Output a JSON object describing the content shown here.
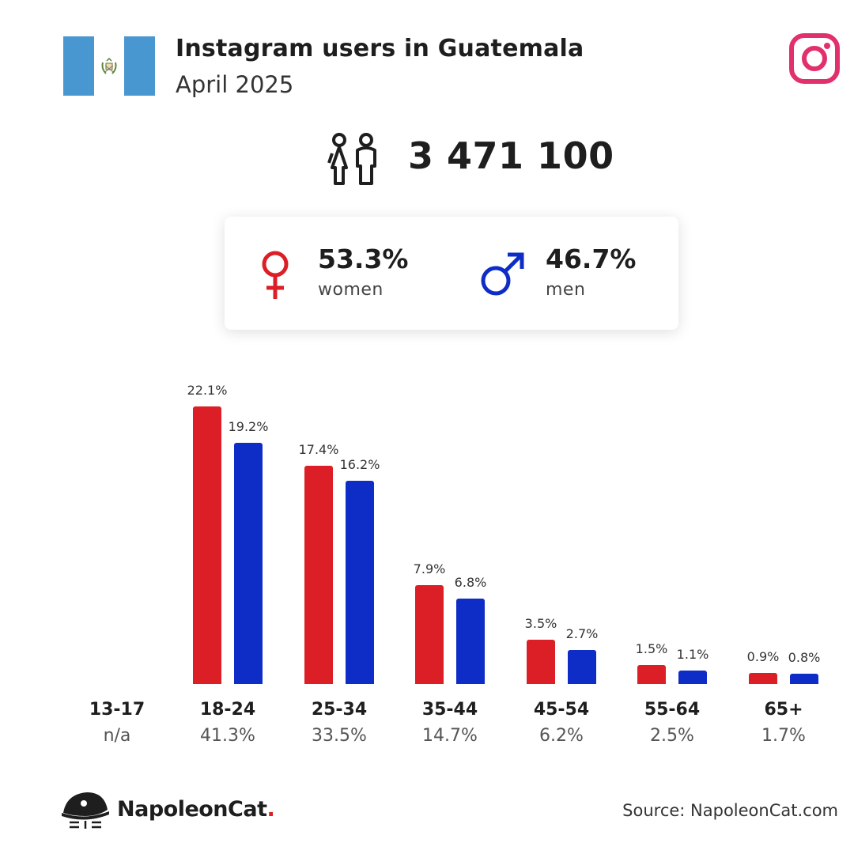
{
  "header": {
    "title": "Instagram users in Guatemala",
    "subtitle": "April 2025"
  },
  "icons": {
    "flag": "guatemala-flag-icon",
    "platform": "instagram-icon",
    "users": "users-icon",
    "women": "female-symbol-icon",
    "men": "male-symbol-icon",
    "brand": "napoleoncat-logo-icon"
  },
  "colors": {
    "women": "#dc1f26",
    "men": "#0e2cc6",
    "flag_blue": "#4997d0",
    "instagram": "#e1306c"
  },
  "total_users": "3 471 100",
  "gender": {
    "women": {
      "pct": "53.3%",
      "label": "women"
    },
    "men": {
      "pct": "46.7%",
      "label": "men"
    }
  },
  "chart_data": {
    "type": "bar",
    "categories": [
      "13-17",
      "18-24",
      "25-34",
      "35-44",
      "45-54",
      "55-64",
      "65+"
    ],
    "category_totals": [
      "n/a",
      "41.3%",
      "33.5%",
      "14.7%",
      "6.2%",
      "2.5%",
      "1.7%"
    ],
    "series": [
      {
        "name": "women",
        "values": [
          null,
          22.1,
          17.4,
          7.9,
          3.5,
          1.5,
          0.9
        ],
        "labels": [
          "",
          "22.1%",
          "17.4%",
          "7.9%",
          "3.5%",
          "1.5%",
          "0.9%"
        ]
      },
      {
        "name": "men",
        "values": [
          null,
          19.2,
          16.2,
          6.8,
          2.7,
          1.1,
          0.8
        ],
        "labels": [
          "",
          "19.2%",
          "16.2%",
          "6.8%",
          "2.7%",
          "1.1%",
          "0.8%"
        ]
      }
    ],
    "title": "",
    "xlabel": "",
    "ylabel": "",
    "ylim": [
      0,
      22.1
    ],
    "grid": false
  },
  "footer": {
    "brand": "NapoleonCat",
    "brand_dot": ".",
    "source": "Source: NapoleonCat.com"
  }
}
